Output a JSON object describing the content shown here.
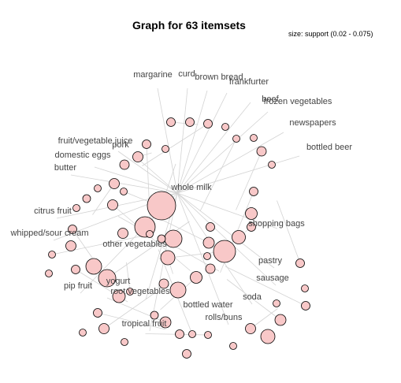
{
  "title": "Graph for 63 itemsets",
  "legend": "size: support (0.02 - 0.075)",
  "colors": {
    "node_fill": "#f8c8c8",
    "node_stroke": "#000000",
    "edge": "#d3d3d3",
    "label": "#444444"
  },
  "items": [
    "margarine",
    "curd",
    "brown bread",
    "frankfurter",
    "beef",
    "frozen vegetables",
    "newspapers",
    "bottled beer",
    "fruit/vegetable juice",
    "pork",
    "domestic eggs",
    "butter",
    "citrus fruit",
    "whipped/sour cream",
    "whole milk",
    "shopping bags",
    "other vegetables",
    "pastry",
    "sausage",
    "yogurt",
    "pip fruit",
    "root vegetables",
    "soda",
    "bottled water",
    "rolls/buns",
    "tropical fruit"
  ]
}
